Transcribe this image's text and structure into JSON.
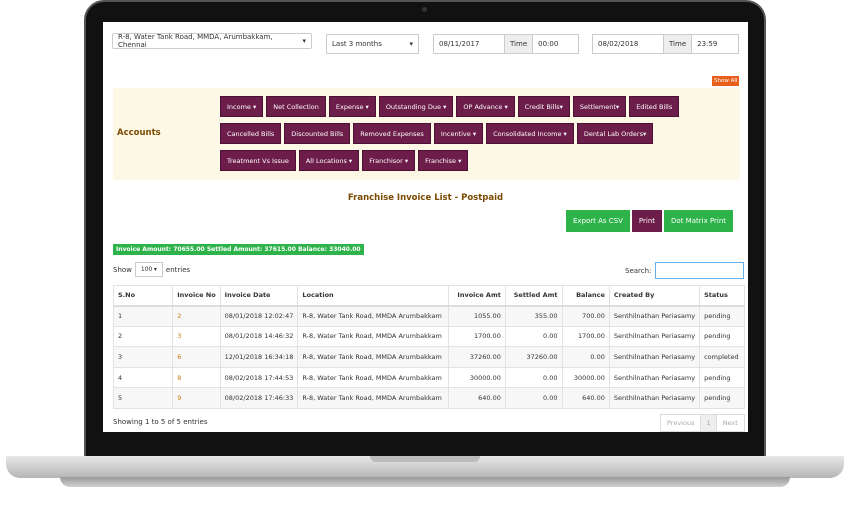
{
  "filters": {
    "location": "R-8, Water Tank Road, MMDA, Arumbakkam, Chennai",
    "range": "Last 3 months",
    "from_date": "08/11/2017",
    "time_label": "Time",
    "from_time": "00:00",
    "to_date": "08/02/2018",
    "to_time": "23:59",
    "show_all": "Show All"
  },
  "accounts": {
    "label": "Accounts",
    "buttons": [
      "Income ▾",
      "Net Collection",
      "Expense ▾",
      "Outstanding Due ▾",
      "OP Advance ▾",
      "Credit Bills▾",
      "Settlement▾",
      "Edited Bills",
      "Cancelled Bills",
      "Discounted Bills",
      "Removed Expenses",
      "Incentive ▾",
      "Consolidated Income ▾",
      "Dental Lab Orders▾",
      "Treatment Vs Issue",
      "All Locations ▾",
      "Franchisor ▾",
      "Franchise ▾"
    ]
  },
  "title": "Franchise Invoice List - Postpaid",
  "actions": {
    "export": "Export As CSV",
    "print": "Print",
    "dot": "Dot Matrix Print"
  },
  "summary": "Invoice Amount: 70655.00 Settled Amount: 37615.00 Balance: 33040.00",
  "length": {
    "show": "Show",
    "value": "100",
    "entries": "entries"
  },
  "search": {
    "label": "Search:",
    "value": ""
  },
  "table": {
    "headers": [
      "S.No",
      "Invoice No",
      "Invoice Date",
      "Location",
      "Invoice Amt",
      "Settled Amt",
      "Balance",
      "Created By",
      "Status"
    ],
    "rows": [
      [
        "1",
        "2",
        "08/01/2018 12:02:47",
        "R-8, Water Tank Road, MMDA Arumbakkam",
        "1055.00",
        "355.00",
        "700.00",
        "Senthilnathan Periasamy",
        "pending"
      ],
      [
        "2",
        "3",
        "08/01/2018 14:46:32",
        "R-8, Water Tank Road, MMDA Arumbakkam",
        "1700.00",
        "0.00",
        "1700.00",
        "Senthilnathan Periasamy",
        "pending"
      ],
      [
        "3",
        "6",
        "12/01/2018 16:34:18",
        "R-8, Water Tank Road, MMDA Arumbakkam",
        "37260.00",
        "37260.00",
        "0.00",
        "Senthilnathan Periasamy",
        "completed"
      ],
      [
        "4",
        "8",
        "08/02/2018 17:44:53",
        "R-8, Water Tank Road, MMDA Arumbakkam",
        "30000.00",
        "0.00",
        "30000.00",
        "Senthilnathan Periasamy",
        "pending"
      ],
      [
        "5",
        "9",
        "08/02/2018 17:46:33",
        "R-8, Water Tank Road, MMDA Arumbakkam",
        "640.00",
        "0.00",
        "640.00",
        "Senthilnathan Periasamy",
        "pending"
      ]
    ]
  },
  "info": "Showing 1 to 5 of 5 entries",
  "pager": {
    "prev": "Previous",
    "page": "1",
    "next": "Next"
  },
  "colors": {
    "maroon": "#6d1d4a",
    "green": "#2eb24a",
    "orange": "#e8601c",
    "panel": "#fdf8e6"
  }
}
